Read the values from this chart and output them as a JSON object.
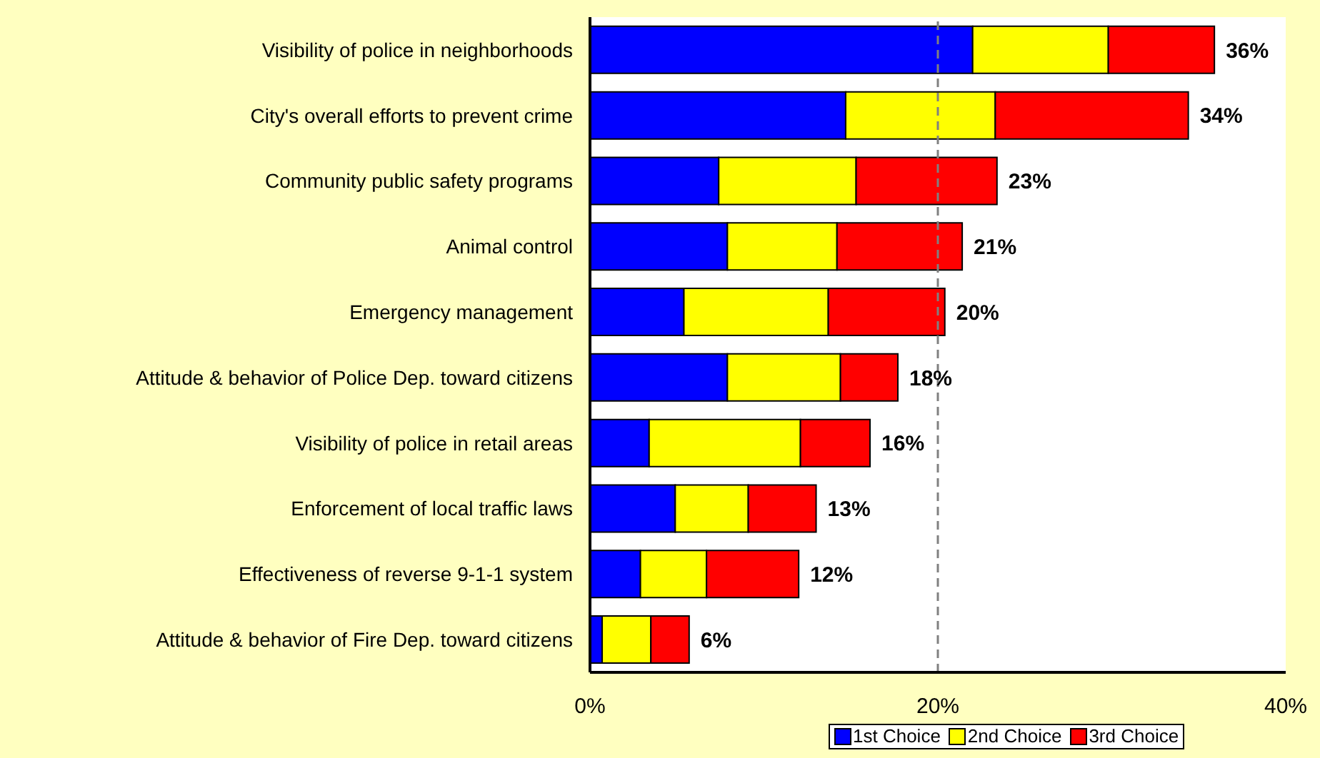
{
  "chart_data": {
    "type": "bar",
    "orientation": "horizontal",
    "stacked": true,
    "categories": [
      "Visibility of police in neighborhoods",
      "City's overall efforts to prevent crime",
      "Community public safety programs",
      "Animal control",
      "Emergency management",
      "Attitude & behavior of Police Dep. toward citizens",
      "Visibility of police in retail areas",
      "Enforcement of local traffic laws",
      "Effectiveness of reverse 9-1-1 system",
      "Attitude & behavior of Fire Dep. toward citizens"
    ],
    "series": [
      {
        "name": "1st Choice",
        "color": "#0000ff",
        "values": [
          22,
          14.7,
          7.4,
          7.9,
          5.4,
          7.9,
          3.4,
          4.9,
          2.9,
          0.7
        ]
      },
      {
        "name": "2nd Choice",
        "color": "#ffff00",
        "values": [
          7.8,
          8.6,
          7.9,
          6.3,
          8.3,
          6.5,
          8.7,
          4.2,
          3.8,
          2.8
        ]
      },
      {
        "name": "3rd Choice",
        "color": "#ff0000",
        "values": [
          6.1,
          11.1,
          8.1,
          7.2,
          6.7,
          3.3,
          4.0,
          3.9,
          5.3,
          2.2
        ]
      }
    ],
    "totals": [
      "36%",
      "34%",
      "23%",
      "21%",
      "20%",
      "18%",
      "16%",
      "13%",
      "12%",
      "6%"
    ],
    "xlim": [
      0,
      40
    ],
    "xticks": [
      {
        "value": 0,
        "label": "0%"
      },
      {
        "value": 20,
        "label": "20%"
      },
      {
        "value": 40,
        "label": "40%"
      }
    ],
    "ref_lines": [
      {
        "axis": "x",
        "value": 20,
        "color": "#808080",
        "line_style": "dashed"
      }
    ],
    "legend": "bottom"
  }
}
